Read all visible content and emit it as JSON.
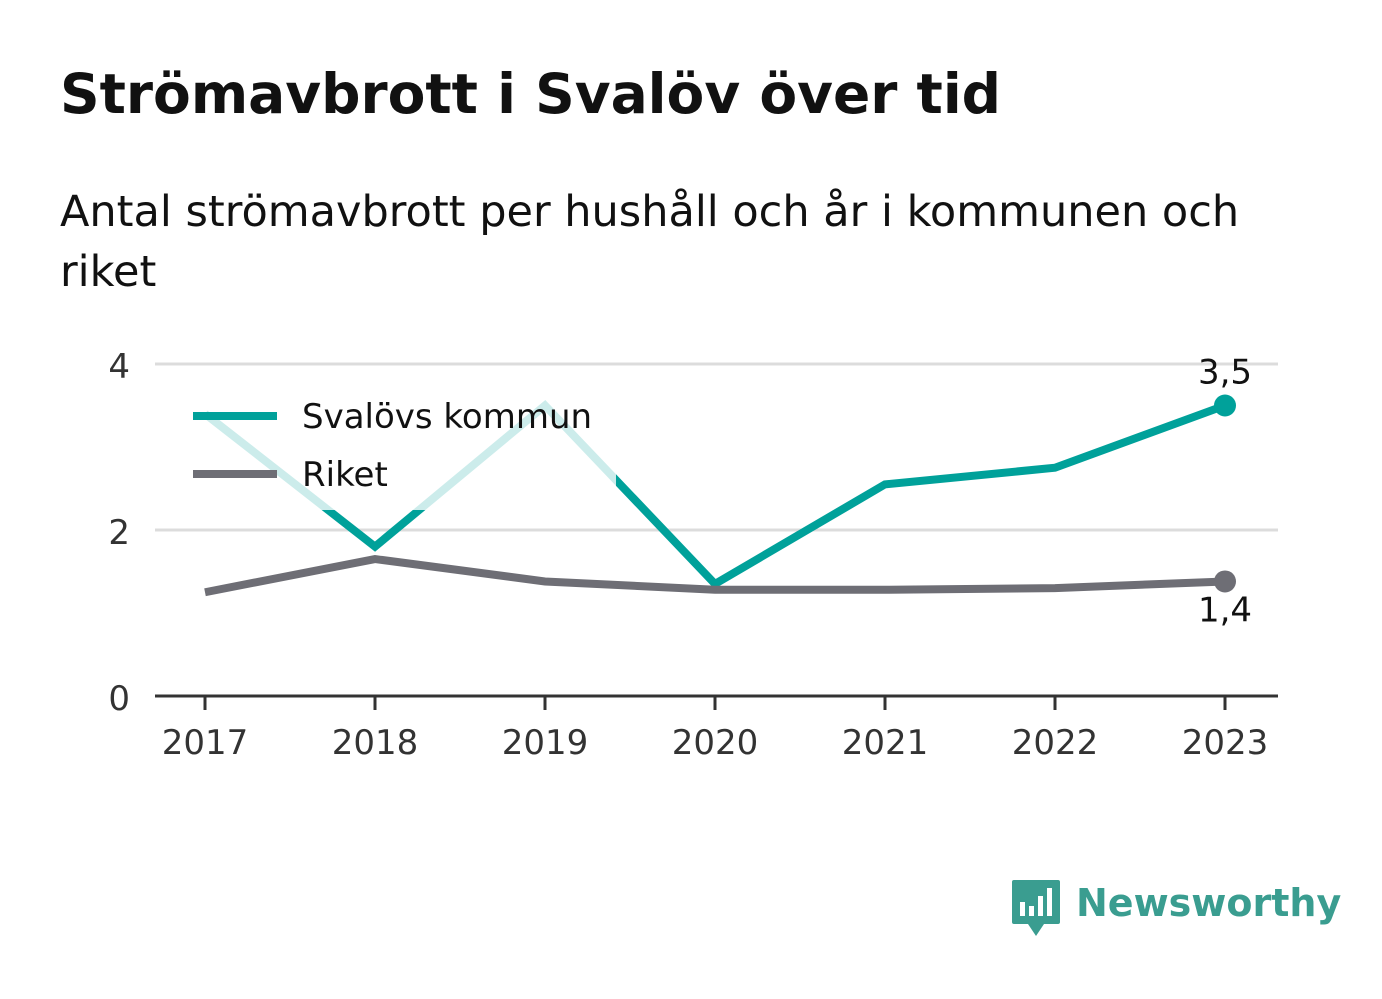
{
  "title": "Strömavbrott i Svalöv över tid",
  "subtitle": "Antal strömavbrott per hushåll och år i kommunen och riket",
  "brand": {
    "name": "Newsworthy",
    "color": "#3a9d90",
    "icon": "newsworthy-logo-icon"
  },
  "chart_data": {
    "type": "line",
    "categories": [
      "2017",
      "2018",
      "2019",
      "2020",
      "2021",
      "2022",
      "2023"
    ],
    "yticks": [
      "0",
      "2",
      "4"
    ],
    "ylim": [
      0,
      4
    ],
    "grid": true,
    "legend_position": "top-left",
    "series": [
      {
        "name": "Svalövs kommun",
        "color": "#00a19a",
        "values": [
          3.4,
          1.8,
          3.5,
          1.35,
          2.55,
          2.75,
          3.5
        ],
        "end_label": "3,5"
      },
      {
        "name": "Riket",
        "color": "#6e6e75",
        "values": [
          1.25,
          1.65,
          1.38,
          1.28,
          1.28,
          1.3,
          1.38
        ],
        "end_label": "1,4"
      }
    ]
  }
}
